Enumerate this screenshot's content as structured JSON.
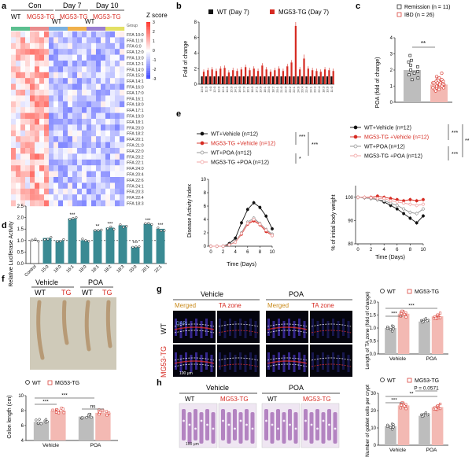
{
  "colors": {
    "red": "#d62b22",
    "black": "#111111",
    "teal": "#3a8a93",
    "grey": "#8c8c8c",
    "pink": "#f09a9a",
    "heat_red": "#e4362a",
    "heat_blue": "#3541b8"
  },
  "panel_letters": {
    "a": "a",
    "b": "b",
    "c": "c",
    "d": "d",
    "e": "e",
    "f": "f",
    "g": "g",
    "h": "h"
  },
  "panel_a": {
    "groups": [
      "Con",
      "Day 7",
      "Day 10"
    ],
    "col_labels": [
      "WT",
      "MG53-TG",
      "WT",
      "MG53-TG",
      "WT",
      "MG53-TG"
    ],
    "group_label": "Group",
    "zscore_label": "Z score",
    "zscore_ticks": [
      "3",
      "2",
      "1",
      "0",
      "-1",
      "-2",
      "-3"
    ],
    "rows": [
      "FFA 10:0",
      "FFA 11:0",
      "FFA 6:0",
      "FFA 12:0",
      "FFA 13:0",
      "FFA 12:1",
      "FFA 14:0",
      "FFA 15:0",
      "FFA 14:1",
      "FFA 16:0",
      "FFA 17:0",
      "FFA 16:1",
      "FFA 18:0",
      "FFA 17:1",
      "FFA 19:0",
      "FFA 18:1",
      "FFA 20:0",
      "FFA 18:2",
      "FFA 20:1",
      "FFA 21:0",
      "FFA 22:0",
      "FFA 20:2",
      "FFA 22:1",
      "FFA 24:0",
      "FFA 20:4",
      "FFA 22:6",
      "FFA 24:1",
      "FFA 20:3",
      "FFA 22:4",
      "FFA 18:3"
    ]
  },
  "panel_b": {
    "chart_data": {
      "type": "bar",
      "ylabel": "Fold of change",
      "ylim": [
        0,
        8
      ],
      "yticks": [
        "0",
        "2",
        "4",
        "6",
        "8"
      ],
      "series": [
        {
          "name": "WT (Day 7)",
          "color": "#111111",
          "values": [
            1,
            1,
            1,
            1,
            1,
            1,
            1,
            1,
            1,
            1,
            1,
            1,
            1,
            1,
            1,
            1,
            1,
            1,
            1,
            1,
            1,
            1,
            1,
            1,
            1,
            1,
            1,
            1,
            1,
            1,
            1,
            1
          ]
        },
        {
          "name": "MG53-TG (Day 7)",
          "color": "#d62b22",
          "values": [
            1.6,
            1.8,
            1.9,
            1.7,
            2.0,
            2.1,
            1.5,
            1.8,
            1.7,
            1.9,
            2.2,
            1.8,
            2.0,
            1.7,
            2.4,
            1.9,
            1.6,
            1.8,
            2.0,
            1.7,
            2.3,
            2.8,
            7.5,
            1.9,
            3.3,
            2.0,
            1.8,
            1.7,
            1.6,
            1.9,
            1.8,
            1.7
          ]
        }
      ]
    }
  },
  "panel_c": {
    "chart_data": {
      "type": "bar",
      "categories": [
        "Remission",
        "IBD"
      ],
      "legend": [
        "Remission (n = 11)",
        "IBD (n = 26)"
      ],
      "ylabel": "POA (fold of change)",
      "ylim": [
        0,
        4
      ],
      "yticks": [
        "0",
        "1",
        "2",
        "3",
        "4"
      ],
      "values": [
        2.0,
        1.1
      ],
      "points": [
        [
          2.9,
          2.5,
          2.2,
          2.0,
          1.8,
          1.7,
          1.5,
          2.6,
          2.3,
          1.4,
          1.9
        ],
        [
          1.8,
          1.5,
          1.4,
          1.3,
          1.2,
          1.1,
          1.0,
          0.9,
          0.8,
          0.7,
          1.6,
          1.3,
          1.2,
          1.1,
          1.0,
          0.9,
          1.4,
          1.2,
          1.0,
          0.8,
          1.5,
          1.3,
          1.1,
          0.9,
          1.2,
          1.0
        ]
      ],
      "significance": "**"
    }
  },
  "panel_d": {
    "chart_data": {
      "type": "bar",
      "ylabel": "Relative Luciferase Activity",
      "ylim": [
        0,
        2.5
      ],
      "yticks": [
        "0.0",
        "0.5",
        "1.0",
        "1.5",
        "2.0",
        "2.5"
      ],
      "categories": [
        "Control",
        "15:0",
        "16:0",
        "16:1",
        "18:0",
        "18:1",
        "18:2",
        "18:3",
        "20:0",
        "20:1",
        "22:1"
      ],
      "values": [
        1.0,
        1.1,
        1.0,
        1.95,
        1.0,
        1.45,
        1.55,
        1.65,
        0.72,
        1.72,
        1.5
      ],
      "stars": [
        "",
        "",
        "",
        "***",
        "",
        "**",
        "***",
        "",
        "***",
        "***",
        "***"
      ]
    }
  },
  "panel_e": {
    "left": {
      "legend": [
        "WT+Vehicle (n=12)",
        "MG53-TG +Vehicle (n=12)",
        "WT+POA (n=12)",
        "MG53-TG +POA (n=12)"
      ],
      "stars": [
        "***",
        "***",
        "*"
      ],
      "chart_data": {
        "type": "line",
        "ylabel": "Disease Activity Index",
        "xlabel": "Time (Days)",
        "x": [
          0,
          1,
          2,
          3,
          4,
          5,
          6,
          7,
          8,
          9,
          10
        ],
        "ylim": [
          0,
          10
        ],
        "yticks": [
          "0",
          "2",
          "4",
          "6",
          "8",
          "10"
        ],
        "xticks": [
          "0",
          "2",
          "4",
          "6",
          "8",
          "10"
        ],
        "series": [
          {
            "name": "WT+Vehicle",
            "values": [
              0,
              0,
              0,
              0.4,
              1.2,
              3.5,
              5.5,
              6.5,
              5.8,
              4.5,
              2.6
            ]
          },
          {
            "name": "MG53-TG +Vehicle",
            "values": [
              0,
              0,
              0,
              0.2,
              0.6,
              1.8,
              3.3,
              3.8,
              3.2,
              2.2,
              1.6
            ]
          },
          {
            "name": "WT+POA",
            "values": [
              0,
              0,
              0,
              0.2,
              0.7,
              2.0,
              3.6,
              4.2,
              3.4,
              2.5,
              1.8
            ]
          },
          {
            "name": "MG53-TG +POA",
            "values": [
              0,
              0,
              0,
              0.2,
              0.6,
              1.9,
              3.4,
              4.0,
              3.3,
              2.4,
              1.6
            ]
          }
        ]
      }
    },
    "right": {
      "legend": [
        "WT+Vehicle (n=12)",
        "MG53-TG +Vehicle (n=12)",
        "WT+POA (n=12)",
        "MG53-TG +POA (n=12)"
      ],
      "stars": [
        "***",
        "**",
        "***"
      ],
      "chart_data": {
        "type": "line",
        "ylabel": "% of initial body weight",
        "xlabel": "Time (Days)",
        "x": [
          0,
          1,
          2,
          3,
          4,
          5,
          6,
          7,
          8,
          9,
          10
        ],
        "ylim": [
          80,
          105
        ],
        "yticks": [
          "80",
          "90",
          "100"
        ],
        "xticks": [
          "0",
          "2",
          "4",
          "6",
          "8",
          "10"
        ],
        "series": [
          {
            "name": "WT+Vehicle",
            "values": [
              100,
              99.8,
              99.5,
              99,
              98,
              96.5,
              95,
              93,
              91,
              89,
              92
            ]
          },
          {
            "name": "MG53-TG +Vehicle",
            "values": [
              100,
              100,
              100,
              100.5,
              100,
              99.5,
              99,
              98.5,
              99,
              98.5,
              99
            ]
          },
          {
            "name": "WT+POA",
            "values": [
              100,
              99.8,
              99.5,
              99,
              98.5,
              97.5,
              96.5,
              95,
              93.5,
              93,
              95
            ]
          },
          {
            "name": "MG53-TG +POA",
            "values": [
              100,
              100,
              99.8,
              99.5,
              99.5,
              98.5,
              98,
              97.5,
              97,
              96.5,
              97
            ]
          }
        ]
      }
    }
  },
  "panel_f": {
    "header": [
      "Vehicle",
      "POA"
    ],
    "cols": [
      "WT",
      "TG",
      "WT",
      "TG"
    ],
    "legend": [
      "WT",
      "MG53-TG"
    ],
    "chart_data": {
      "type": "bar",
      "ylabel": "Colon length (cm)",
      "ylim": [
        4,
        10
      ],
      "yticks": [
        "4",
        "6",
        "8",
        "10"
      ],
      "groups": [
        "Vehicle",
        "POA"
      ],
      "values": [
        6.5,
        8.0,
        7.2,
        7.7
      ],
      "stars": [
        "***",
        "***",
        "ns"
      ]
    }
  },
  "panel_g": {
    "header": [
      "Vehicle",
      "POA"
    ],
    "sublabels": [
      "Merged",
      "TA zone",
      "Merged",
      "TA zone"
    ],
    "rows": [
      "WT",
      "MG53-TG"
    ],
    "dapi": "DAPI",
    "scale": "100 μm",
    "legend": [
      "WT",
      "MG53-TG"
    ],
    "chart_data": {
      "type": "bar",
      "ylabel": "Length of TA zone (fold of change)",
      "ylim": [
        0,
        2
      ],
      "yticks": [
        "0.0",
        "0.5",
        "1.0",
        "1.5",
        "2.0"
      ],
      "groups": [
        "Vehicle",
        "POA"
      ],
      "values": [
        1.0,
        1.55,
        1.25,
        1.45
      ],
      "stars": [
        "***",
        "***"
      ]
    }
  },
  "panel_h": {
    "header": [
      "Vehicle",
      "POA"
    ],
    "cols": [
      "WT",
      "MG53-TG",
      "WT",
      "MG53-TG"
    ],
    "scale": "100 μm",
    "legend": [
      "WT",
      "MG53-TG"
    ],
    "chart_data": {
      "type": "bar",
      "ylabel": "Number of goblet cells per crypt",
      "ylim": [
        0,
        30
      ],
      "yticks": [
        "0",
        "10",
        "20",
        "30"
      ],
      "groups": [
        "Vehicle",
        "POA"
      ],
      "values": [
        11,
        23,
        17,
        22
      ],
      "stars": [
        "***",
        "**",
        "P = 0.0571"
      ]
    }
  }
}
